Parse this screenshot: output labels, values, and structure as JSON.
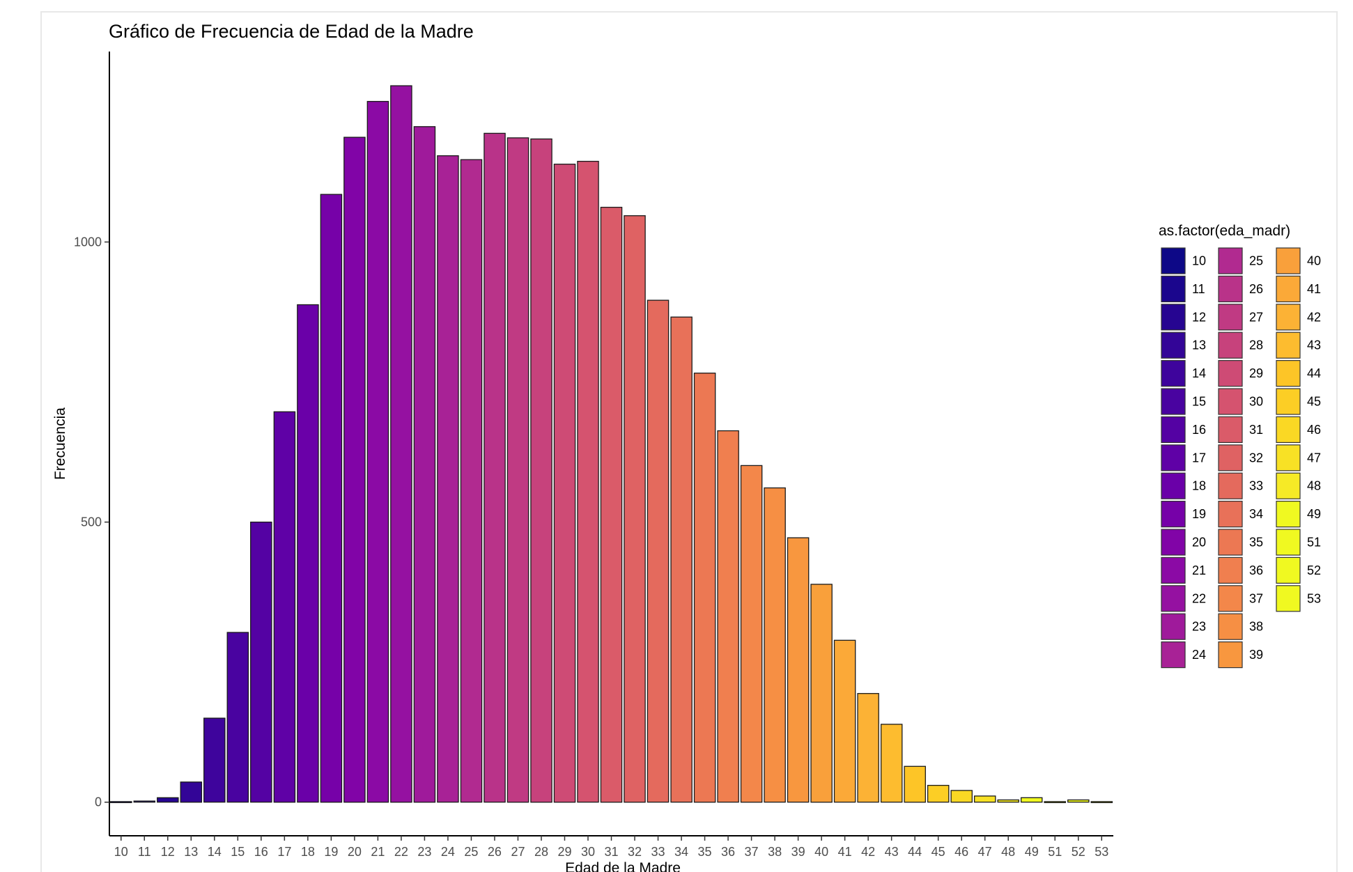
{
  "chart_data": {
    "type": "bar",
    "title": "Gráfico de Frecuencia de Edad de la Madre",
    "xlabel": "Edad de la Madre",
    "ylabel": "Frecuencia",
    "ylim": [
      -60,
      1340
    ],
    "yticks": [
      0,
      500,
      1000
    ],
    "grid": false,
    "legend": {
      "title": "as.factor(eda_madr)",
      "position": "right",
      "columns": 3
    },
    "categories": [
      "10",
      "11",
      "12",
      "13",
      "14",
      "15",
      "16",
      "17",
      "18",
      "19",
      "20",
      "21",
      "22",
      "23",
      "24",
      "25",
      "26",
      "27",
      "28",
      "29",
      "30",
      "31",
      "32",
      "33",
      "34",
      "35",
      "36",
      "37",
      "38",
      "39",
      "40",
      "41",
      "42",
      "43",
      "44",
      "45",
      "46",
      "47",
      "48",
      "49",
      "51",
      "52",
      "53"
    ],
    "values": [
      1,
      2,
      8,
      36,
      150,
      303,
      500,
      697,
      888,
      1085,
      1187,
      1251,
      1279,
      1206,
      1154,
      1147,
      1194,
      1186,
      1184,
      1139,
      1144,
      1062,
      1047,
      896,
      866,
      766,
      663,
      601,
      561,
      472,
      389,
      289,
      194,
      139,
      64,
      30,
      21,
      11,
      4,
      8,
      1,
      4,
      1
    ],
    "colors": [
      "#0d0887",
      "#1b068d",
      "#260591",
      "#330597",
      "#3e049c",
      "#4903a0",
      "#5402a3",
      "#5f01a6",
      "#6a00a8",
      "#7601a8",
      "#8104a7",
      "#8b0aa5",
      "#9511a1",
      "#9f1a9b",
      "#a82296",
      "#b12a90",
      "#b93389",
      "#c03a83",
      "#c7427c",
      "#ce4b75",
      "#d5536f",
      "#da5b69",
      "#df6263",
      "#e46a5d",
      "#e87159",
      "#ec7853",
      "#f07f4f",
      "#f3874a",
      "#f68f44",
      "#f8973f",
      "#f9a03b",
      "#fba938",
      "#fcb235",
      "#fdbc2f",
      "#fdc527",
      "#fcce25",
      "#fad824",
      "#f8e125",
      "#f6ea26",
      "#f0f921",
      "#f0f921",
      "#f0f921",
      "#f0f921"
    ]
  }
}
